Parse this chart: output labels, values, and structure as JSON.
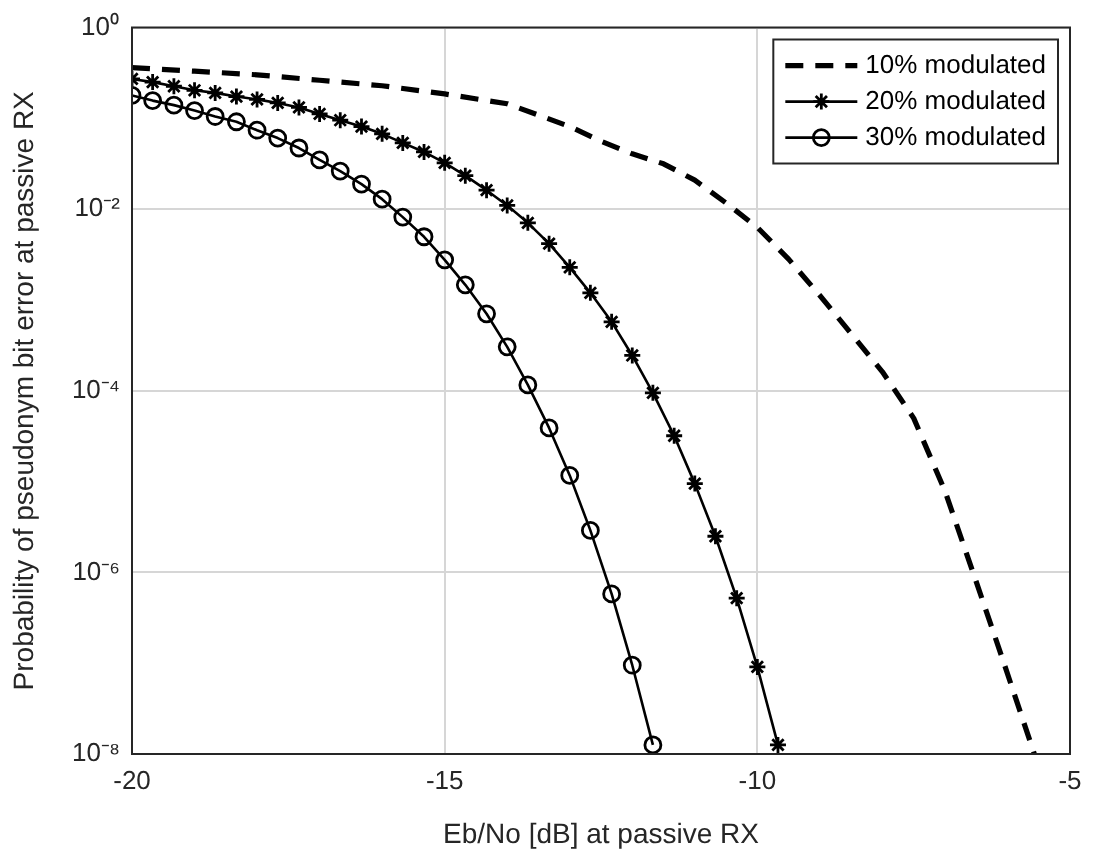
{
  "chart_data": {
    "type": "line",
    "xlabel": "Eb/No [dB] at passive RX",
    "ylabel": "Probability of pseudonym bit error at passive RX",
    "log": "y",
    "grid": true,
    "legend": "top right",
    "xlim": [
      -20,
      -5
    ],
    "xticks": [
      -20,
      -15,
      -10,
      -5
    ],
    "ylim": [
      1e-08,
      1
    ],
    "yticks": [
      {
        "value": 1e-08,
        "label": "10⁻⁸"
      },
      {
        "value": 1e-06,
        "label": "10⁻⁶"
      },
      {
        "value": 0.0001,
        "label": "10⁻⁴"
      },
      {
        "value": 0.01,
        "label": "10⁻²"
      },
      {
        "value": 1,
        "label": "10⁰"
      }
    ],
    "series": [
      {
        "name": "10% modulated",
        "color": "#000000",
        "marker": "none",
        "line_style": "dashed",
        "x": [
          -20,
          -19,
          -18,
          -17,
          -16,
          -15,
          -14,
          -13,
          -12.5,
          -12,
          -11.5,
          -11,
          -10.5,
          -10,
          -9.5,
          -9,
          -8.5,
          -8,
          -7.5,
          -7,
          -6.5,
          -6.1,
          -5.57
        ],
        "values": [
          0.363,
          0.331,
          0.302,
          0.263,
          0.229,
          0.186,
          0.145,
          0.0813,
          0.0562,
          0.0407,
          0.0316,
          0.0209,
          0.0117,
          0.00631,
          0.00282,
          0.00112,
          0.000427,
          0.000162,
          5e-05,
          7.9e-06,
          7.9e-07,
          1.23e-07,
          1e-08
        ]
      },
      {
        "name": "20% modulated",
        "color": "#000000",
        "marker": "cross",
        "line_style": "solid",
        "x": [
          -20,
          -19.67,
          -19.33,
          -19,
          -18.67,
          -18.33,
          -18,
          -17.67,
          -17.33,
          -17,
          -16.67,
          -16.33,
          -16,
          -15.67,
          -15.33,
          -15,
          -14.67,
          -14.33,
          -14,
          -13.67,
          -13.33,
          -13,
          -12.67,
          -12.33,
          -12,
          -11.67,
          -11.33,
          -11,
          -10.67,
          -10.33,
          -10,
          -9.67
        ],
        "values": [
          0.272,
          0.251,
          0.226,
          0.204,
          0.191,
          0.174,
          0.162,
          0.148,
          0.132,
          0.112,
          0.0955,
          0.0813,
          0.0676,
          0.0537,
          0.0427,
          0.0324,
          0.0234,
          0.0162,
          0.011,
          0.00708,
          0.00417,
          0.00229,
          0.0012,
          0.000575,
          0.000245,
          9.5e-05,
          3.2e-05,
          9.5e-06,
          2.5e-06,
          5.2e-07,
          9.1e-08,
          1.26e-08
        ]
      },
      {
        "name": "30% modulated",
        "color": "#000000",
        "marker": "circle",
        "line_style": "solid",
        "x": [
          -20,
          -19.67,
          -19.33,
          -19,
          -18.67,
          -18.33,
          -18,
          -17.67,
          -17.33,
          -17,
          -16.67,
          -16.33,
          -16,
          -15.67,
          -15.33,
          -15,
          -14.67,
          -14.33,
          -14,
          -13.67,
          -13.33,
          -13,
          -12.67,
          -12.33,
          -12,
          -11.67
        ],
        "values": [
          0.179,
          0.157,
          0.14,
          0.122,
          0.105,
          0.0918,
          0.0741,
          0.0607,
          0.0472,
          0.0349,
          0.0263,
          0.0189,
          0.0129,
          0.00818,
          0.00497,
          0.00277,
          0.00147,
          0.000705,
          0.000305,
          0.000116,
          3.9e-05,
          1.17e-05,
          2.9e-06,
          5.8e-07,
          9.5e-08,
          1.26e-08
        ]
      }
    ]
  }
}
